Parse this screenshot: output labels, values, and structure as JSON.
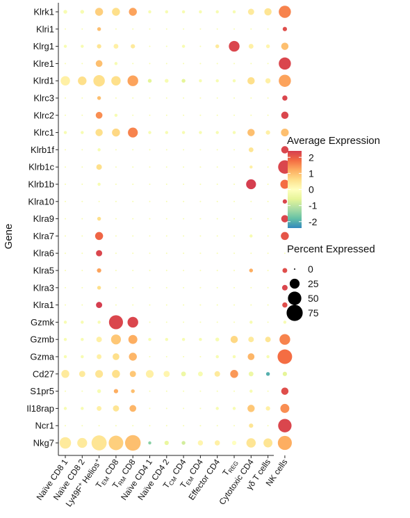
{
  "chart_data": {
    "type": "dotplot",
    "ylabel": "Gene",
    "genes": [
      "Klrk1",
      "Klri1",
      "Klrg1",
      "Klre1",
      "Klrd1",
      "Klrc3",
      "Klrc2",
      "Klrc1",
      "Klrb1f",
      "Klrb1c",
      "Klrb1b",
      "Klra10",
      "Klra9",
      "Klra7",
      "Klra6",
      "Klra5",
      "Klra3",
      "Klra1",
      "Gzmk",
      "Gzmb",
      "Gzma",
      "Cd27",
      "S1pr5",
      "Il18rap",
      "Ncr1",
      "Nkg7"
    ],
    "cell_types": [
      "Naïve CD8 1",
      "Naïve CD8 2",
      "Ly49F+ Helios+",
      "TEM CD8",
      "TRM CD8",
      "Naïve CD4 1",
      "Naïve CD4 2",
      "TCM CD4",
      "TEM CD4",
      "Effector CD4",
      "TREG",
      "Cytotoxic CD4",
      "γδ T cells",
      "NK cells"
    ],
    "cell_type_labels": [
      {
        "text": "Naïve CD8 1"
      },
      {
        "text": "Naïve CD8 2"
      },
      {
        "text": "Ly49F",
        "sup": "+",
        "text2": " Helios",
        "sup2": "+"
      },
      {
        "text": "T",
        "sub": "EM",
        "text2": " CD8"
      },
      {
        "text": "T",
        "sub": "RM",
        "text2": " CD8"
      },
      {
        "text": "Naïve CD4 1"
      },
      {
        "text": "Naïve CD4 2"
      },
      {
        "text": "T",
        "sub": "CM",
        "text2": " CD4"
      },
      {
        "text": "T",
        "sub": "EM",
        "text2": " CD4"
      },
      {
        "text": "Effector CD4"
      },
      {
        "text": "T",
        "sub": "REG"
      },
      {
        "text": "Cytotoxic CD4"
      },
      {
        "text": "γδ T cells"
      },
      {
        "text": "NK cells"
      }
    ],
    "avg_expression": [
      [
        -0.2,
        -0.2,
        0.8,
        0.6,
        1.3,
        -0.2,
        -0.2,
        -0.2,
        -0.2,
        -0.2,
        -0.2,
        0.4,
        0.5,
        1.6
      ],
      [
        -0.2,
        -0.2,
        1.0,
        -0.2,
        -0.2,
        -0.2,
        -0.2,
        -0.2,
        -0.2,
        -0.2,
        -0.2,
        -0.2,
        -0.2,
        2.2
      ],
      [
        -0.2,
        -0.2,
        0.5,
        0.3,
        0.4,
        -0.2,
        -0.2,
        -0.2,
        -0.2,
        0.4,
        2.3,
        0.3,
        0.2,
        1.0
      ],
      [
        -0.2,
        -0.2,
        1.0,
        -0.2,
        -0.2,
        -0.2,
        -0.2,
        -0.2,
        -0.2,
        -0.2,
        -0.2,
        -0.2,
        -0.2,
        2.3
      ],
      [
        0.3,
        0.6,
        0.6,
        0.6,
        1.3,
        -0.6,
        -0.2,
        -0.6,
        -0.2,
        -0.2,
        -0.2,
        0.6,
        0.3,
        1.3
      ],
      [
        -0.2,
        -0.2,
        1.0,
        -0.2,
        -0.2,
        -0.2,
        -0.2,
        -0.2,
        -0.2,
        -0.2,
        -0.2,
        -0.2,
        -0.2,
        2.3
      ],
      [
        -0.2,
        -0.2,
        1.5,
        -0.2,
        -0.2,
        -0.2,
        -0.2,
        -0.2,
        -0.2,
        -0.2,
        -0.2,
        -0.2,
        -0.2,
        2.3
      ],
      [
        -0.2,
        -0.2,
        0.6,
        0.7,
        1.6,
        -0.2,
        -0.2,
        -0.2,
        -0.2,
        -0.2,
        -0.2,
        1.0,
        0.3,
        1.0
      ],
      [
        -0.2,
        -0.2,
        -0.2,
        -0.2,
        -0.2,
        -0.2,
        -0.2,
        -0.2,
        -0.2,
        -0.2,
        -0.2,
        0.5,
        -0.2,
        2.3
      ],
      [
        -0.2,
        -0.2,
        0.6,
        -0.2,
        -0.2,
        -0.2,
        -0.2,
        -0.2,
        -0.2,
        -0.2,
        -0.2,
        0.3,
        -0.2,
        2.3
      ],
      [
        -0.2,
        -0.2,
        -0.2,
        -0.2,
        -0.2,
        -0.2,
        -0.2,
        -0.2,
        -0.2,
        -0.2,
        -0.2,
        2.4,
        -0.2,
        1.8
      ],
      [
        -0.2,
        -0.2,
        -0.2,
        -0.2,
        -0.2,
        -0.2,
        -0.2,
        -0.2,
        -0.2,
        -0.2,
        -0.2,
        -0.2,
        -0.2,
        2.3
      ],
      [
        -0.2,
        -0.2,
        0.6,
        -0.2,
        -0.2,
        -0.2,
        -0.2,
        -0.2,
        -0.2,
        -0.2,
        -0.2,
        -0.2,
        -0.2,
        2.3
      ],
      [
        -0.2,
        -0.2,
        1.9,
        -0.2,
        -0.2,
        -0.2,
        -0.2,
        -0.2,
        -0.2,
        -0.2,
        -0.2,
        -0.2,
        -0.2,
        2.1
      ],
      [
        -0.2,
        -0.2,
        2.3,
        -0.2,
        -0.2,
        -0.2,
        -0.2,
        -0.2,
        -0.2,
        -0.2,
        -0.2,
        -0.2,
        -0.2,
        -0.2
      ],
      [
        -0.2,
        -0.2,
        1.3,
        -0.2,
        -0.2,
        -0.2,
        -0.2,
        -0.2,
        -0.2,
        -0.2,
        -0.2,
        1.2,
        -0.2,
        2.2
      ],
      [
        -0.2,
        -0.2,
        0.6,
        -0.2,
        -0.2,
        -0.2,
        -0.2,
        -0.2,
        -0.2,
        -0.2,
        -0.2,
        -0.2,
        -0.2,
        2.3
      ],
      [
        -0.2,
        -0.2,
        2.4,
        -0.2,
        -0.2,
        -0.2,
        -0.2,
        -0.2,
        -0.2,
        -0.2,
        -0.2,
        -0.2,
        -0.2,
        2.2
      ],
      [
        -0.2,
        -0.2,
        -0.2,
        2.3,
        2.3,
        -0.2,
        -0.2,
        -0.2,
        -0.2,
        -0.2,
        -0.2,
        -0.2,
        -0.2,
        -0.2
      ],
      [
        -0.2,
        -0.2,
        0.3,
        0.9,
        1.2,
        -0.2,
        -0.2,
        -0.2,
        -0.2,
        -0.2,
        0.7,
        0.4,
        0.5,
        1.6
      ],
      [
        -0.2,
        -0.2,
        0.3,
        0.6,
        1.1,
        -0.2,
        -0.2,
        -0.2,
        -0.2,
        -0.2,
        -0.2,
        1.1,
        -0.2,
        1.8
      ],
      [
        0.4,
        0.4,
        0.5,
        0.6,
        0.9,
        0.3,
        0.2,
        -0.4,
        -0.2,
        0.4,
        1.4,
        -0.4,
        -2.0,
        -0.6
      ],
      [
        -0.2,
        -0.2,
        -0.2,
        1.2,
        1.0,
        -0.2,
        -0.2,
        -0.2,
        -0.2,
        -0.2,
        -0.2,
        -0.2,
        -0.2,
        2.2
      ],
      [
        -0.2,
        -0.2,
        0.3,
        0.5,
        1.1,
        -0.2,
        -0.2,
        -0.2,
        -0.2,
        -0.2,
        -0.2,
        0.9,
        0.3,
        1.5
      ],
      [
        -0.2,
        -0.2,
        -0.2,
        -0.2,
        -0.2,
        -0.2,
        -0.2,
        -0.2,
        -0.2,
        -0.2,
        -0.2,
        0.5,
        -0.2,
        2.3
      ],
      [
        0.4,
        0.4,
        0.5,
        0.8,
        1.0,
        -1.5,
        -0.5,
        -0.8,
        0.2,
        0.3,
        0.0,
        0.5,
        0.5,
        1.2
      ]
    ],
    "pct_expressed": [
      [
        2,
        2,
        15,
        15,
        15,
        1,
        1,
        1,
        1,
        1,
        1,
        8,
        12,
        40
      ],
      [
        0,
        0,
        2,
        0,
        0,
        0,
        0,
        0,
        0,
        0,
        0,
        0,
        0,
        3
      ],
      [
        1,
        1,
        3,
        4,
        3,
        0,
        0,
        1,
        0,
        2,
        30,
        4,
        2,
        12
      ],
      [
        0,
        0,
        10,
        1,
        0,
        0,
        0,
        0,
        0,
        0,
        0,
        0,
        0,
        40
      ],
      [
        22,
        18,
        35,
        22,
        30,
        2,
        2,
        2,
        1,
        1,
        1,
        12,
        5,
        40
      ],
      [
        0,
        0,
        2,
        0,
        0,
        0,
        0,
        0,
        0,
        0,
        0,
        0,
        0,
        5
      ],
      [
        0,
        0,
        10,
        1,
        0,
        0,
        0,
        0,
        0,
        0,
        0,
        0,
        0,
        12
      ],
      [
        1,
        1,
        12,
        15,
        25,
        1,
        1,
        1,
        1,
        1,
        1,
        12,
        3,
        14
      ],
      [
        0,
        0,
        1,
        0,
        0,
        0,
        0,
        0,
        0,
        0,
        0,
        4,
        0,
        12
      ],
      [
        0,
        0,
        6,
        0,
        0,
        0,
        0,
        0,
        0,
        0,
        0,
        1,
        0,
        50
      ],
      [
        0,
        0,
        1,
        0,
        0,
        0,
        0,
        0,
        0,
        0,
        0,
        25,
        0,
        20
      ],
      [
        0,
        0,
        0,
        0,
        0,
        0,
        0,
        0,
        0,
        0,
        0,
        0,
        0,
        3
      ],
      [
        0,
        0,
        2,
        0,
        0,
        0,
        0,
        0,
        0,
        0,
        0,
        0,
        0,
        12
      ],
      [
        0,
        0,
        15,
        0,
        0,
        0,
        0,
        0,
        0,
        0,
        0,
        1,
        0,
        15
      ],
      [
        0,
        0,
        8,
        0,
        0,
        0,
        0,
        0,
        0,
        0,
        0,
        0,
        0,
        0
      ],
      [
        0,
        0,
        3,
        0,
        0,
        0,
        0,
        0,
        0,
        0,
        0,
        2,
        0,
        4
      ],
      [
        0,
        0,
        2,
        0,
        0,
        0,
        0,
        0,
        0,
        0,
        0,
        0,
        0,
        6
      ],
      [
        0,
        0,
        8,
        0,
        0,
        0,
        0,
        0,
        0,
        0,
        0,
        0,
        0,
        5
      ],
      [
        1,
        1,
        1,
        55,
        30,
        0,
        0,
        0,
        0,
        0,
        0,
        1,
        0,
        1
      ],
      [
        1,
        1,
        6,
        25,
        20,
        1,
        1,
        1,
        1,
        2,
        12,
        6,
        6,
        30
      ],
      [
        1,
        1,
        4,
        10,
        15,
        0,
        0,
        0,
        0,
        1,
        1,
        10,
        1,
        60
      ],
      [
        15,
        8,
        14,
        15,
        8,
        14,
        8,
        4,
        4,
        6,
        15,
        4,
        2,
        3
      ],
      [
        0,
        0,
        2,
        3,
        2,
        0,
        0,
        0,
        0,
        0,
        0,
        1,
        0,
        12
      ],
      [
        1,
        1,
        4,
        8,
        10,
        0,
        0,
        0,
        0,
        1,
        1,
        12,
        3,
        20
      ],
      [
        0,
        0,
        0,
        0,
        0,
        0,
        0,
        0,
        0,
        0,
        0,
        3,
        0,
        50
      ],
      [
        35,
        25,
        65,
        60,
        70,
        1,
        3,
        2,
        5,
        5,
        3,
        22,
        20,
        55
      ]
    ],
    "legend_color": {
      "title": "Average Expression",
      "ticks": [
        "2",
        "1",
        "0",
        "-1",
        "-2"
      ],
      "range": [
        -2.4,
        2.4
      ]
    },
    "legend_size": {
      "title": "Percent Expressed",
      "ticks": [
        "0",
        "25",
        "50",
        "75"
      ]
    }
  },
  "colors": {
    "scale": [
      "#d53e4f",
      "#f46d43",
      "#fdae61",
      "#fee08b",
      "#ffffbf",
      "#e6f598",
      "#abdda4",
      "#66c2a5",
      "#3288bd"
    ]
  }
}
